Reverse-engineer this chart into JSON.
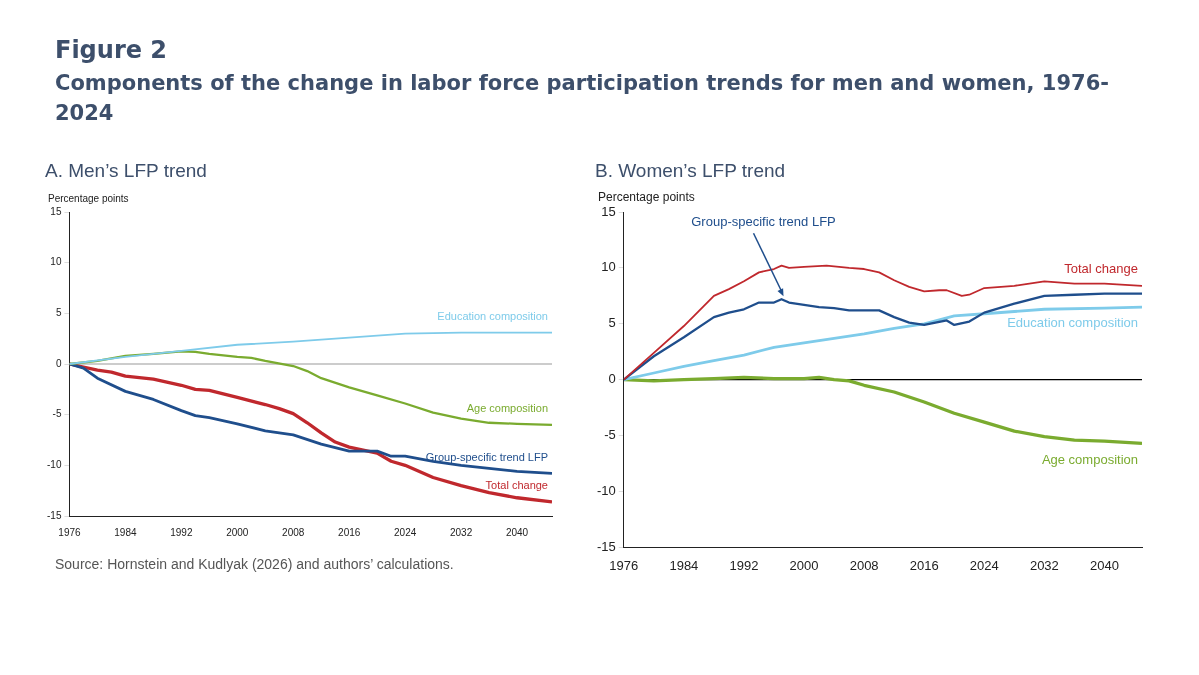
{
  "chart_data": [
    {
      "type": "other",
      "title": "Figure 2",
      "subtitle": "Components of the change in labor force participation trends for men and women, 1976-2024"
    },
    {
      "type": "line",
      "title": "A. Men’s LFP trend",
      "ylabel": "Percentage points",
      "xlim": [
        1976,
        2045
      ],
      "xticks": [
        1976,
        1984,
        1992,
        2000,
        2008,
        2016,
        2024,
        2032,
        2040
      ],
      "ylim": [
        -15,
        15
      ],
      "yticks": [
        -15,
        -10,
        -5,
        0,
        5,
        10,
        15
      ],
      "legend": false,
      "ref_lines": [
        {
          "axis": "y",
          "value": 0,
          "color": "#999999"
        }
      ],
      "annotations": [
        "Source: Hornstein and Kudlyak (2026) and authors’ calculations."
      ],
      "series": [
        {
          "name": "Education composition",
          "color": "#7ecbea",
          "x": [
            1976,
            1984,
            1992,
            2000,
            2008,
            2016,
            2024,
            2032,
            2045
          ],
          "values": [
            0,
            0.7,
            1.3,
            1.9,
            2.2,
            2.6,
            3.0,
            3.1,
            3.1
          ]
        },
        {
          "name": "Age composition",
          "color": "#7aab2f",
          "x": [
            1976,
            1980,
            1984,
            1988,
            1992,
            1994,
            1996,
            2000,
            2002,
            2004,
            2008,
            2010,
            2012,
            2016,
            2020,
            2024,
            2028,
            2032,
            2036,
            2040,
            2045
          ],
          "values": [
            0,
            0.3,
            0.8,
            1.0,
            1.25,
            1.2,
            1.0,
            0.7,
            0.6,
            0.3,
            -0.2,
            -0.7,
            -1.4,
            -2.3,
            -3.1,
            -3.9,
            -4.8,
            -5.4,
            -5.8,
            -5.9,
            -6.0
          ]
        },
        {
          "name": "Group-specific trend LFP",
          "color": "#1f4e8c",
          "x": [
            1976,
            1978,
            1980,
            1984,
            1988,
            1992,
            1994,
            1996,
            2000,
            2004,
            2006,
            2008,
            2012,
            2016,
            2020,
            2022,
            2024,
            2028,
            2032,
            2036,
            2040,
            2045
          ],
          "values": [
            0,
            -0.4,
            -1.4,
            -2.7,
            -3.5,
            -4.6,
            -5.1,
            -5.3,
            -5.9,
            -6.6,
            -6.8,
            -7.0,
            -7.9,
            -8.6,
            -8.6,
            -9.1,
            -9.1,
            -9.6,
            -10.0,
            -10.3,
            -10.6,
            -10.8
          ]
        },
        {
          "name": "Total change",
          "color": "#c0282d",
          "x": [
            1976,
            1980,
            1982,
            1984,
            1988,
            1992,
            1994,
            1996,
            2000,
            2004,
            2006,
            2008,
            2010,
            2012,
            2014,
            2016,
            2020,
            2022,
            2024,
            2028,
            2032,
            2036,
            2040,
            2045
          ],
          "values": [
            0,
            -0.6,
            -0.8,
            -1.2,
            -1.5,
            -2.1,
            -2.5,
            -2.6,
            -3.3,
            -4.0,
            -4.4,
            -4.9,
            -5.8,
            -6.8,
            -7.7,
            -8.2,
            -8.8,
            -9.6,
            -10.0,
            -11.2,
            -12.0,
            -12.7,
            -13.2,
            -13.6
          ]
        }
      ]
    },
    {
      "type": "line",
      "title": "B. Women’s LFP trend",
      "ylabel": "Percentage points",
      "xlim": [
        1976,
        2045
      ],
      "xticks": [
        1976,
        1984,
        1992,
        2000,
        2008,
        2016,
        2024,
        2032,
        2040
      ],
      "ylim": [
        -15,
        15
      ],
      "yticks": [
        -15,
        -10,
        -5,
        0,
        5,
        10,
        15
      ],
      "legend": false,
      "ref_lines": [
        {
          "axis": "y",
          "value": 0,
          "color": "#000000"
        }
      ],
      "annotations": [
        {
          "text": "Group-specific trend LFP",
          "x": 1997,
          "y": 7.2
        }
      ],
      "series": [
        {
          "name": "Total change",
          "color": "#c0282d",
          "x": [
            1976,
            1980,
            1984,
            1988,
            1990,
            1992,
            1994,
            1996,
            1997,
            1998,
            2000,
            2003,
            2006,
            2008,
            2010,
            2012,
            2014,
            2016,
            2018,
            2019,
            2021,
            2022,
            2024,
            2028,
            2032,
            2036,
            2040,
            2045
          ],
          "values": [
            0,
            2.4,
            4.8,
            7.5,
            8.1,
            8.8,
            9.6,
            9.9,
            10.2,
            10.0,
            10.1,
            10.2,
            10.0,
            9.9,
            9.6,
            8.9,
            8.3,
            7.9,
            8.0,
            8.0,
            7.5,
            7.6,
            8.2,
            8.4,
            8.8,
            8.6,
            8.6,
            8.4
          ]
        },
        {
          "color": "#1f4e8c",
          "x": [
            1976,
            1980,
            1984,
            1988,
            1990,
            1992,
            1994,
            1996,
            1997,
            1998,
            2002,
            2004,
            2006,
            2008,
            2010,
            2012,
            2014,
            2016,
            2019,
            2020,
            2022,
            2024,
            2028,
            2032,
            2036,
            2040,
            2045
          ],
          "values": [
            0,
            2.1,
            3.8,
            5.6,
            6.0,
            6.3,
            6.9,
            6.9,
            7.2,
            6.9,
            6.5,
            6.4,
            6.2,
            6.2,
            6.2,
            5.6,
            5.1,
            4.9,
            5.3,
            4.9,
            5.2,
            6.0,
            6.8,
            7.5,
            7.6,
            7.7,
            7.7
          ]
        },
        {
          "name": "Education composition",
          "color": "#7ecbea",
          "x": [
            1976,
            1980,
            1984,
            1988,
            1992,
            1996,
            2000,
            2004,
            2008,
            2012,
            2016,
            2020,
            2024,
            2028,
            2032,
            2040,
            2045
          ],
          "values": [
            0,
            0.6,
            1.2,
            1.7,
            2.2,
            2.9,
            3.3,
            3.7,
            4.1,
            4.6,
            5.0,
            5.7,
            5.9,
            6.1,
            6.3,
            6.4,
            6.5
          ]
        },
        {
          "name": "Age composition",
          "color": "#7aab2f",
          "x": [
            1976,
            1980,
            1984,
            1988,
            1992,
            1996,
            2000,
            2002,
            2004,
            2006,
            2008,
            2012,
            2016,
            2020,
            2024,
            2028,
            2032,
            2036,
            2040,
            2045
          ],
          "values": [
            0,
            -0.1,
            0,
            0.1,
            0.2,
            0.1,
            0.1,
            0.2,
            0.0,
            -0.1,
            -0.5,
            -1.1,
            -2.0,
            -3.0,
            -3.8,
            -4.6,
            -5.1,
            -5.4,
            -5.5,
            -5.7
          ]
        }
      ]
    }
  ]
}
